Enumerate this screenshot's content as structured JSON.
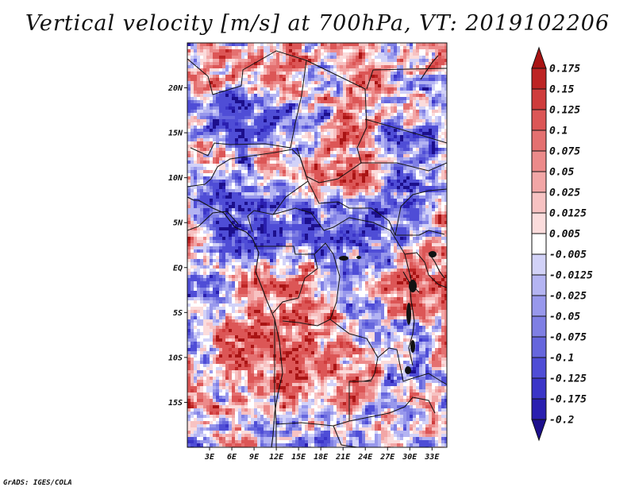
{
  "title": "Vertical velocity [m/s] at 700hPa, VT: 2019102206",
  "credit": "GrADS: IGES/COLA",
  "map": {
    "lon_range": [
      0,
      35
    ],
    "lat_range": [
      -20,
      25
    ],
    "lat_ticks": [
      {
        "label": "20N",
        "lat": 20
      },
      {
        "label": "15N",
        "lat": 15
      },
      {
        "label": "10N",
        "lat": 10
      },
      {
        "label": "5N",
        "lat": 5
      },
      {
        "label": "EQ",
        "lat": 0
      },
      {
        "label": "5S",
        "lat": -5
      },
      {
        "label": "10S",
        "lat": -10
      },
      {
        "label": "15S",
        "lat": -15
      }
    ],
    "lon_ticks": [
      {
        "label": "3E",
        "lon": 3
      },
      {
        "label": "6E",
        "lon": 6
      },
      {
        "label": "9E",
        "lon": 9
      },
      {
        "label": "12E",
        "lon": 12
      },
      {
        "label": "15E",
        "lon": 15
      },
      {
        "label": "18E",
        "lon": 18
      },
      {
        "label": "21E",
        "lon": 21
      },
      {
        "label": "24E",
        "lon": 24
      },
      {
        "label": "27E",
        "lon": 27
      },
      {
        "label": "30E",
        "lon": 30
      },
      {
        "label": "33E",
        "lon": 33
      }
    ]
  },
  "colorbar": {
    "bins": [
      {
        "color": "#1c0f8c"
      },
      {
        "color": "#2a1fb0"
      },
      {
        "color": "#3b35c8"
      },
      {
        "color": "#4f4dd6"
      },
      {
        "color": "#6666dd"
      },
      {
        "color": "#7f7fe4"
      },
      {
        "color": "#9898ec"
      },
      {
        "color": "#b4b4f2"
      },
      {
        "color": "#d2d2f8"
      },
      {
        "color": "#ffffff"
      },
      {
        "color": "#fbdcdc"
      },
      {
        "color": "#f7c2c2"
      },
      {
        "color": "#f2a6a6"
      },
      {
        "color": "#ec8a8a"
      },
      {
        "color": "#e47070"
      },
      {
        "color": "#dc5656"
      },
      {
        "color": "#cf3c3c"
      },
      {
        "color": "#bd2424"
      },
      {
        "color": "#a91414"
      }
    ],
    "levels": [
      "-0.2",
      "-0.175",
      "-0.125",
      "-0.1",
      "-0.075",
      "-0.05",
      "-0.025",
      "-0.0125",
      "-0.005",
      "0.005",
      "0.0125",
      "0.025",
      "0.05",
      "0.075",
      "0.1",
      "0.125",
      "0.15",
      "0.175"
    ]
  }
}
